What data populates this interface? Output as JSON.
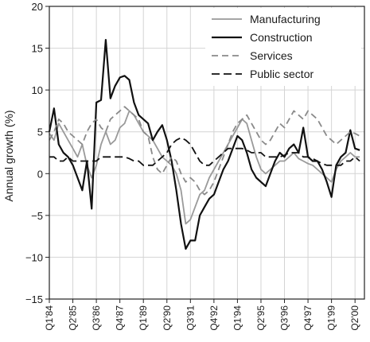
{
  "chart_data": {
    "type": "line",
    "ylabel": "Annual growth (%)",
    "xlabel": "",
    "ylim": [
      -15,
      20
    ],
    "yticks": [
      20,
      15,
      10,
      5,
      0,
      -5,
      -10,
      -15
    ],
    "grid": true,
    "legend_position": "top-right",
    "xlim": [
      1984.0,
      2000.75
    ],
    "xtick_labels": [
      "Q1'84",
      "Q2'85",
      "Q3'86",
      "Q4'87",
      "Q1'89",
      "Q2'90",
      "Q3'91",
      "Q4'92",
      "Q1'94",
      "Q2'95",
      "Q3'96",
      "Q4'97",
      "Q1'99",
      "Q2'00"
    ],
    "xtick_positions": [
      1984.0,
      1985.25,
      1986.5,
      1987.75,
      1989.0,
      1990.25,
      1991.5,
      1992.75,
      1994.0,
      1995.25,
      1996.5,
      1997.75,
      1999.0,
      2000.25
    ],
    "series": [
      {
        "name": "Manufacturing",
        "color": "#9a9a9a",
        "dash": "solid",
        "points": [
          [
            1984.0,
            4.8
          ],
          [
            1984.25,
            4.0
          ],
          [
            1984.5,
            6.0
          ],
          [
            1984.75,
            5.0
          ],
          [
            1985.0,
            4.0
          ],
          [
            1985.25,
            3.0
          ],
          [
            1985.5,
            2.0
          ],
          [
            1985.75,
            3.5
          ],
          [
            1986.0,
            1.0
          ],
          [
            1986.25,
            -0.5
          ],
          [
            1986.5,
            1.0
          ],
          [
            1986.75,
            3.5
          ],
          [
            1987.0,
            5.0
          ],
          [
            1987.25,
            3.5
          ],
          [
            1987.5,
            4.0
          ],
          [
            1987.75,
            5.5
          ],
          [
            1988.0,
            6.0
          ],
          [
            1988.25,
            7.5
          ],
          [
            1988.5,
            7.0
          ],
          [
            1988.75,
            6.0
          ],
          [
            1989.0,
            5.0
          ],
          [
            1989.25,
            4.5
          ],
          [
            1989.5,
            4.0
          ],
          [
            1989.75,
            3.0
          ],
          [
            1990.0,
            2.0
          ],
          [
            1990.25,
            1.5
          ],
          [
            1990.5,
            1.0
          ],
          [
            1990.75,
            0.0
          ],
          [
            1991.0,
            -2.0
          ],
          [
            1991.25,
            -6.0
          ],
          [
            1991.5,
            -5.5
          ],
          [
            1991.75,
            -4.0
          ],
          [
            1992.0,
            -2.5
          ],
          [
            1992.25,
            -2.0
          ],
          [
            1992.5,
            -0.5
          ],
          [
            1992.75,
            0.5
          ],
          [
            1993.0,
            1.5
          ],
          [
            1993.25,
            2.5
          ],
          [
            1993.5,
            3.5
          ],
          [
            1993.75,
            4.5
          ],
          [
            1994.0,
            5.5
          ],
          [
            1994.25,
            6.5
          ],
          [
            1994.5,
            6.0
          ],
          [
            1994.75,
            4.0
          ],
          [
            1995.0,
            2.0
          ],
          [
            1995.25,
            0.5
          ],
          [
            1995.5,
            0.0
          ],
          [
            1995.75,
            0.5
          ],
          [
            1996.0,
            1.0
          ],
          [
            1996.25,
            1.5
          ],
          [
            1996.5,
            1.5
          ],
          [
            1996.75,
            2.0
          ],
          [
            1997.0,
            2.5
          ],
          [
            1997.25,
            1.8
          ],
          [
            1997.5,
            1.5
          ],
          [
            1997.75,
            1.2
          ],
          [
            1998.0,
            1.0
          ],
          [
            1998.25,
            0.5
          ],
          [
            1998.5,
            0.0
          ],
          [
            1998.75,
            -0.5
          ],
          [
            1999.0,
            -1.0
          ],
          [
            1999.25,
            0.5
          ],
          [
            1999.5,
            1.5
          ],
          [
            1999.75,
            2.0
          ],
          [
            2000.0,
            2.5
          ],
          [
            2000.25,
            2.0
          ],
          [
            2000.5,
            2.0
          ]
        ]
      },
      {
        "name": "Construction",
        "color": "#111111",
        "dash": "solid",
        "points": [
          [
            1984.0,
            5.0
          ],
          [
            1984.25,
            7.8
          ],
          [
            1984.5,
            3.5
          ],
          [
            1984.75,
            2.5
          ],
          [
            1985.0,
            2.0
          ],
          [
            1985.25,
            1.0
          ],
          [
            1985.5,
            -0.5
          ],
          [
            1985.75,
            -2.0
          ],
          [
            1986.0,
            1.5
          ],
          [
            1986.25,
            -4.2
          ],
          [
            1986.5,
            8.5
          ],
          [
            1986.75,
            8.8
          ],
          [
            1987.0,
            16.0
          ],
          [
            1987.25,
            9.0
          ],
          [
            1987.5,
            10.5
          ],
          [
            1987.75,
            11.5
          ],
          [
            1988.0,
            11.7
          ],
          [
            1988.25,
            11.2
          ],
          [
            1988.5,
            8.5
          ],
          [
            1988.75,
            7.0
          ],
          [
            1989.0,
            6.5
          ],
          [
            1989.25,
            6.0
          ],
          [
            1989.5,
            4.0
          ],
          [
            1989.75,
            5.0
          ],
          [
            1990.0,
            5.8
          ],
          [
            1990.25,
            4.0
          ],
          [
            1990.5,
            1.5
          ],
          [
            1990.75,
            -2.0
          ],
          [
            1991.0,
            -6.0
          ],
          [
            1991.25,
            -9.0
          ],
          [
            1991.5,
            -8.0
          ],
          [
            1991.75,
            -8.0
          ],
          [
            1992.0,
            -5.0
          ],
          [
            1992.25,
            -4.0
          ],
          [
            1992.5,
            -3.0
          ],
          [
            1992.75,
            -2.5
          ],
          [
            1993.0,
            -1.0
          ],
          [
            1993.25,
            0.5
          ],
          [
            1993.5,
            1.5
          ],
          [
            1993.75,
            3.0
          ],
          [
            1994.0,
            4.5
          ],
          [
            1994.25,
            4.0
          ],
          [
            1994.5,
            2.5
          ],
          [
            1994.75,
            0.5
          ],
          [
            1995.0,
            -0.5
          ],
          [
            1995.25,
            -1.0
          ],
          [
            1995.5,
            -1.5
          ],
          [
            1995.75,
            0.0
          ],
          [
            1996.0,
            1.5
          ],
          [
            1996.25,
            2.5
          ],
          [
            1996.5,
            2.0
          ],
          [
            1996.75,
            3.0
          ],
          [
            1997.0,
            3.5
          ],
          [
            1997.25,
            2.5
          ],
          [
            1997.5,
            5.5
          ],
          [
            1997.75,
            2.0
          ],
          [
            1998.0,
            1.5
          ],
          [
            1998.25,
            1.5
          ],
          [
            1998.5,
            0.5
          ],
          [
            1998.75,
            -1.0
          ],
          [
            1999.0,
            -2.8
          ],
          [
            1999.25,
            1.0
          ],
          [
            1999.5,
            2.0
          ],
          [
            1999.75,
            2.5
          ],
          [
            2000.0,
            5.2
          ],
          [
            2000.25,
            3.0
          ],
          [
            2000.5,
            2.8
          ]
        ]
      },
      {
        "name": "Services",
        "color": "#8a8a8a",
        "dash": "8 5",
        "points": [
          [
            1984.0,
            4.0
          ],
          [
            1984.25,
            5.0
          ],
          [
            1984.5,
            6.5
          ],
          [
            1984.75,
            6.0
          ],
          [
            1985.0,
            5.0
          ],
          [
            1985.25,
            4.5
          ],
          [
            1985.5,
            4.0
          ],
          [
            1985.75,
            3.5
          ],
          [
            1986.0,
            5.0
          ],
          [
            1986.25,
            6.0
          ],
          [
            1986.5,
            6.5
          ],
          [
            1986.75,
            5.5
          ],
          [
            1987.0,
            5.0
          ],
          [
            1987.25,
            6.5
          ],
          [
            1987.5,
            7.0
          ],
          [
            1987.75,
            7.5
          ],
          [
            1988.0,
            8.0
          ],
          [
            1988.25,
            7.5
          ],
          [
            1988.5,
            7.0
          ],
          [
            1988.75,
            6.5
          ],
          [
            1989.0,
            5.0
          ],
          [
            1989.25,
            4.5
          ],
          [
            1989.5,
            2.0
          ],
          [
            1989.75,
            0.5
          ],
          [
            1990.0,
            0.0
          ],
          [
            1990.25,
            1.0
          ],
          [
            1990.5,
            2.0
          ],
          [
            1990.75,
            1.5
          ],
          [
            1991.0,
            0.0
          ],
          [
            1991.25,
            -1.0
          ],
          [
            1991.5,
            -0.5
          ],
          [
            1991.75,
            -1.0
          ],
          [
            1992.0,
            -2.0
          ],
          [
            1992.25,
            -2.5
          ],
          [
            1992.5,
            -2.0
          ],
          [
            1992.75,
            -1.0
          ],
          [
            1993.0,
            0.5
          ],
          [
            1993.25,
            2.0
          ],
          [
            1993.5,
            3.5
          ],
          [
            1993.75,
            5.0
          ],
          [
            1994.0,
            6.0
          ],
          [
            1994.25,
            6.5
          ],
          [
            1994.5,
            7.0
          ],
          [
            1994.75,
            6.0
          ],
          [
            1995.0,
            5.0
          ],
          [
            1995.25,
            4.0
          ],
          [
            1995.5,
            3.5
          ],
          [
            1995.75,
            4.0
          ],
          [
            1996.0,
            5.0
          ],
          [
            1996.25,
            6.0
          ],
          [
            1996.5,
            5.5
          ],
          [
            1996.75,
            6.5
          ],
          [
            1997.0,
            7.5
          ],
          [
            1997.25,
            7.0
          ],
          [
            1997.5,
            6.5
          ],
          [
            1997.75,
            7.5
          ],
          [
            1998.0,
            7.0
          ],
          [
            1998.25,
            6.5
          ],
          [
            1998.5,
            5.5
          ],
          [
            1998.75,
            4.5
          ],
          [
            1999.0,
            4.0
          ],
          [
            1999.25,
            3.5
          ],
          [
            1999.5,
            4.0
          ],
          [
            1999.75,
            4.5
          ],
          [
            2000.0,
            5.0
          ],
          [
            2000.25,
            4.8
          ],
          [
            2000.5,
            4.5
          ]
        ]
      },
      {
        "name": "Public sector",
        "color": "#111111",
        "dash": "10 5",
        "points": [
          [
            1984.0,
            2.0
          ],
          [
            1984.25,
            2.0
          ],
          [
            1984.5,
            1.5
          ],
          [
            1984.75,
            1.5
          ],
          [
            1985.0,
            2.0
          ],
          [
            1985.25,
            1.5
          ],
          [
            1985.5,
            1.5
          ],
          [
            1985.75,
            1.5
          ],
          [
            1986.0,
            1.5
          ],
          [
            1986.25,
            1.5
          ],
          [
            1986.5,
            1.5
          ],
          [
            1986.75,
            2.0
          ],
          [
            1987.0,
            2.0
          ],
          [
            1987.25,
            2.0
          ],
          [
            1987.5,
            2.0
          ],
          [
            1987.75,
            2.0
          ],
          [
            1988.0,
            2.0
          ],
          [
            1988.25,
            1.8
          ],
          [
            1988.5,
            1.5
          ],
          [
            1988.75,
            1.5
          ],
          [
            1989.0,
            1.0
          ],
          [
            1989.25,
            1.0
          ],
          [
            1989.5,
            1.0
          ],
          [
            1989.75,
            1.5
          ],
          [
            1990.0,
            2.0
          ],
          [
            1990.25,
            2.5
          ],
          [
            1990.5,
            3.5
          ],
          [
            1990.75,
            4.0
          ],
          [
            1991.0,
            4.3
          ],
          [
            1991.25,
            4.0
          ],
          [
            1991.5,
            3.5
          ],
          [
            1991.75,
            2.5
          ],
          [
            1992.0,
            1.5
          ],
          [
            1992.25,
            1.0
          ],
          [
            1992.5,
            1.0
          ],
          [
            1992.75,
            1.5
          ],
          [
            1993.0,
            2.0
          ],
          [
            1993.25,
            2.5
          ],
          [
            1993.5,
            3.0
          ],
          [
            1993.75,
            3.0
          ],
          [
            1994.0,
            3.0
          ],
          [
            1994.25,
            3.0
          ],
          [
            1994.5,
            2.8
          ],
          [
            1994.75,
            2.5
          ],
          [
            1995.0,
            2.5
          ],
          [
            1995.25,
            2.5
          ],
          [
            1995.5,
            2.0
          ],
          [
            1995.75,
            2.0
          ],
          [
            1996.0,
            2.0
          ],
          [
            1996.25,
            2.0
          ],
          [
            1996.5,
            2.2
          ],
          [
            1996.75,
            2.5
          ],
          [
            1997.0,
            2.5
          ],
          [
            1997.25,
            2.5
          ],
          [
            1997.5,
            2.0
          ],
          [
            1997.75,
            2.0
          ],
          [
            1998.0,
            1.8
          ],
          [
            1998.25,
            1.5
          ],
          [
            1998.5,
            1.2
          ],
          [
            1998.75,
            1.0
          ],
          [
            1999.0,
            1.0
          ],
          [
            1999.25,
            1.0
          ],
          [
            1999.5,
            1.0
          ],
          [
            1999.75,
            1.5
          ],
          [
            2000.0,
            1.5
          ],
          [
            2000.25,
            2.0
          ],
          [
            2000.5,
            1.5
          ]
        ]
      }
    ]
  }
}
